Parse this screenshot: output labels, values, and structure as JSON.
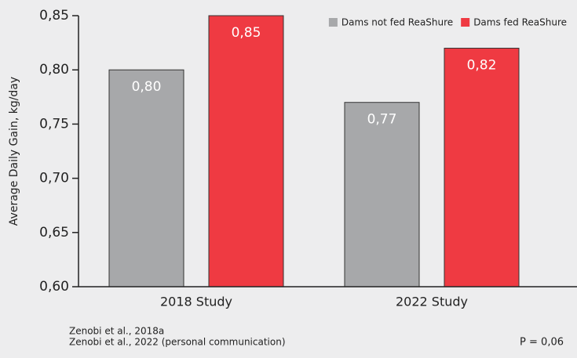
{
  "chart_data": {
    "type": "bar",
    "y_label": "Average Daily Gain, kg/day",
    "categories": [
      "2018 Study",
      "2022 Study"
    ],
    "series": [
      {
        "name": "Dams not fed ReaShure",
        "color": "#a7a8aa",
        "values": [
          0.8,
          0.77
        ],
        "value_labels": [
          "0,80",
          "0,77"
        ]
      },
      {
        "name": "Dams fed ReaShure",
        "color": "#ef3a42",
        "values": [
          0.85,
          0.82
        ],
        "value_labels": [
          "0,85",
          "0,82"
        ]
      }
    ],
    "ylim": [
      0.6,
      0.85
    ],
    "yticks": [
      {
        "value": 0.6,
        "label": "0,60"
      },
      {
        "value": 0.65,
        "label": "0,65"
      },
      {
        "value": 0.7,
        "label": "0,70"
      },
      {
        "value": 0.75,
        "label": "0,75"
      },
      {
        "value": 0.8,
        "label": "0,80"
      },
      {
        "value": 0.85,
        "label": "0,85"
      }
    ],
    "legend": "top-right",
    "notes": [
      "Zenobi et al., 2018a",
      "Zenobi et al., 2022 (personal communication)"
    ],
    "annotation": "P = 0,06"
  }
}
